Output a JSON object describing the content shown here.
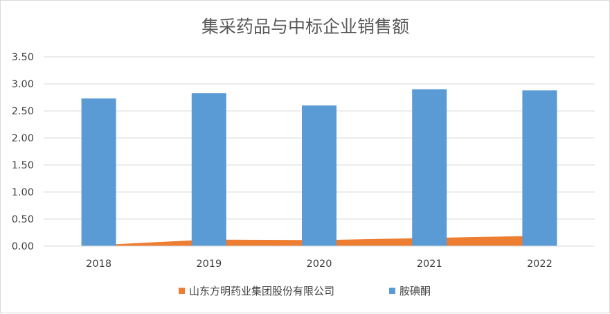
{
  "chart_data": {
    "type": "bar",
    "title": "集采药品与中标企业销售额",
    "categories": [
      "2018",
      "2019",
      "2020",
      "2021",
      "2022"
    ],
    "ylim": [
      0,
      3.5
    ],
    "yticks": [
      "0.00",
      "0.50",
      "1.00",
      "1.50",
      "2.00",
      "2.50",
      "3.00",
      "3.50"
    ],
    "grid": true,
    "legend_position": "bottom",
    "series": [
      {
        "name": "山东方明药业集团股份有限公司",
        "render": "area",
        "color": "#ED7D31",
        "values": [
          0.02,
          0.12,
          0.11,
          0.15,
          0.19
        ]
      },
      {
        "name": "胺碘酮",
        "render": "bar",
        "color": "#5B9BD5",
        "values": [
          2.73,
          2.83,
          2.6,
          2.9,
          2.88
        ]
      }
    ]
  }
}
